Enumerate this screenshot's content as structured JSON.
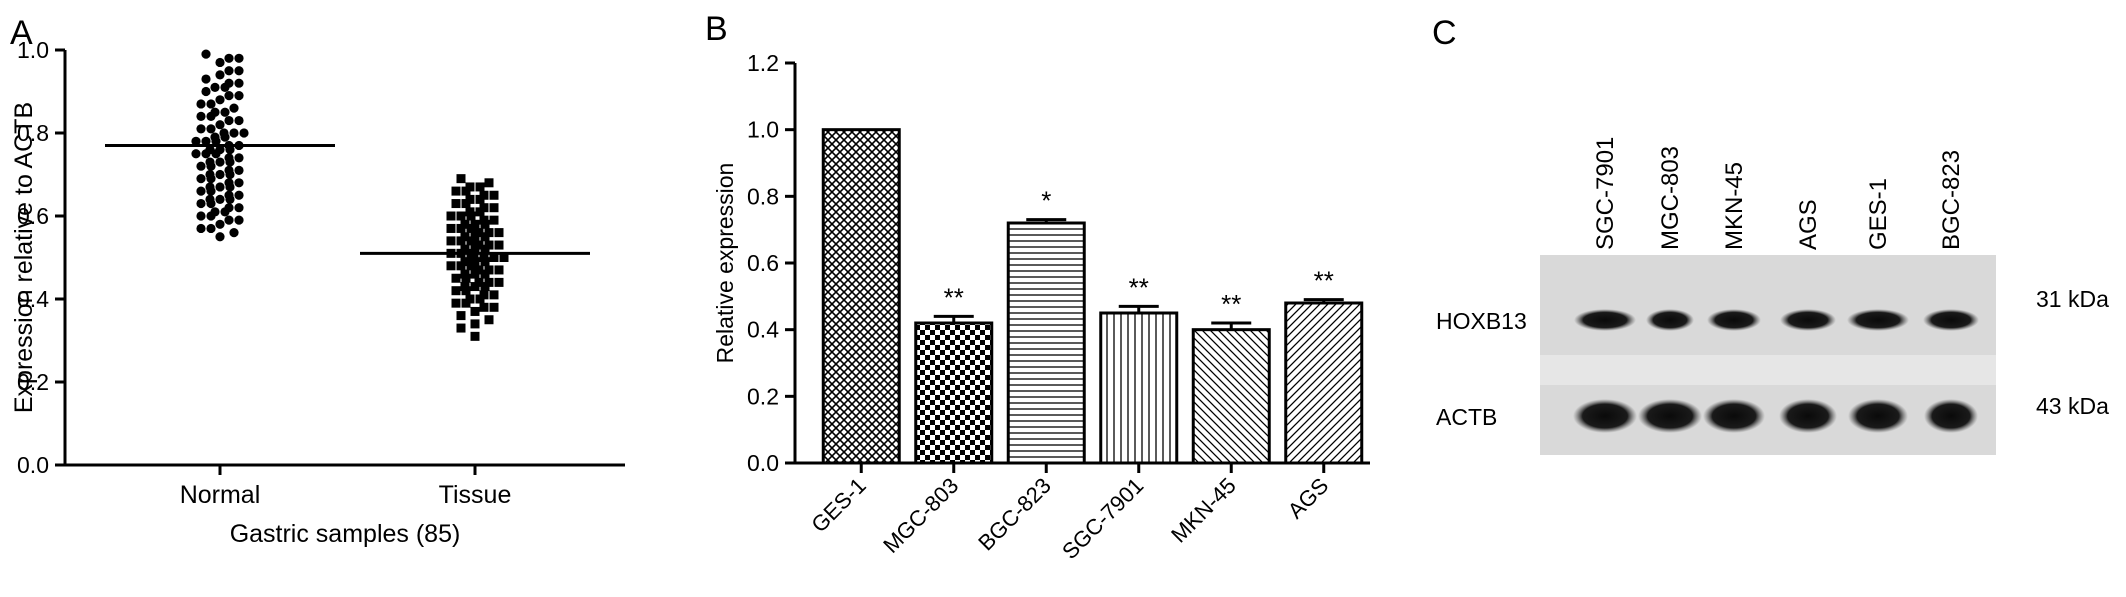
{
  "panels": {
    "A": {
      "label": "A"
    },
    "B": {
      "label": "B"
    },
    "C": {
      "label": "C"
    }
  },
  "chart_data": [
    {
      "panel": "A",
      "type": "scatter",
      "title": "",
      "xlabel": "Gastric samples (85)",
      "ylabel": "Expression relative to ACTB",
      "categories": [
        "Normal",
        "Tissue"
      ],
      "ylim": [
        0,
        1.0
      ],
      "yticks": [
        "0.0",
        "0.2",
        "0.4",
        "0.6",
        "0.8",
        "1.0"
      ],
      "grid": false,
      "series": [
        {
          "category": "Normal",
          "marker": "circle",
          "mean": 0.77,
          "values": [
            0.99,
            0.98,
            0.98,
            0.97,
            0.95,
            0.95,
            0.94,
            0.93,
            0.92,
            0.92,
            0.91,
            0.91,
            0.9,
            0.89,
            0.89,
            0.88,
            0.87,
            0.87,
            0.86,
            0.85,
            0.85,
            0.84,
            0.83,
            0.83,
            0.82,
            0.81,
            0.81,
            0.8,
            0.8,
            0.79,
            0.79,
            0.78,
            0.78,
            0.77,
            0.77,
            0.76,
            0.76,
            0.75,
            0.75,
            0.74,
            0.74,
            0.73,
            0.73,
            0.72,
            0.72,
            0.71,
            0.71,
            0.7,
            0.7,
            0.69,
            0.69,
            0.68,
            0.68,
            0.67,
            0.67,
            0.66,
            0.66,
            0.65,
            0.65,
            0.64,
            0.64,
            0.63,
            0.63,
            0.62,
            0.62,
            0.61,
            0.61,
            0.6,
            0.6,
            0.59,
            0.59,
            0.58,
            0.57,
            0.57,
            0.56,
            0.55,
            0.84,
            0.8,
            0.76,
            0.73,
            0.7,
            0.67,
            0.64,
            0.78,
            0.75
          ]
        },
        {
          "category": "Tissue",
          "marker": "square",
          "mean": 0.51,
          "values": [
            0.69,
            0.68,
            0.67,
            0.67,
            0.66,
            0.66,
            0.65,
            0.65,
            0.64,
            0.64,
            0.63,
            0.63,
            0.62,
            0.61,
            0.61,
            0.6,
            0.6,
            0.59,
            0.59,
            0.58,
            0.58,
            0.57,
            0.57,
            0.56,
            0.56,
            0.55,
            0.55,
            0.54,
            0.54,
            0.53,
            0.53,
            0.52,
            0.52,
            0.51,
            0.51,
            0.5,
            0.5,
            0.49,
            0.49,
            0.48,
            0.48,
            0.47,
            0.47,
            0.46,
            0.46,
            0.45,
            0.45,
            0.44,
            0.44,
            0.43,
            0.43,
            0.42,
            0.42,
            0.41,
            0.41,
            0.4,
            0.4,
            0.39,
            0.39,
            0.38,
            0.38,
            0.37,
            0.36,
            0.35,
            0.34,
            0.33,
            0.31,
            0.62,
            0.58,
            0.55,
            0.52,
            0.49,
            0.46,
            0.43,
            0.57,
            0.53,
            0.5,
            0.47,
            0.44,
            0.6,
            0.56,
            0.51,
            0.48,
            0.54,
            0.5
          ]
        }
      ]
    },
    {
      "panel": "B",
      "type": "bar",
      "title": "",
      "xlabel": "",
      "ylabel": "Relative expression",
      "categories": [
        "GES-1",
        "MGC-803",
        "BGC-823",
        "SGC-7901",
        "MKN-45",
        "AGS"
      ],
      "values": [
        1.0,
        0.42,
        0.72,
        0.45,
        0.4,
        0.48
      ],
      "errors": [
        0.0,
        0.02,
        0.01,
        0.02,
        0.02,
        0.01
      ],
      "significance": [
        "",
        "**",
        "*",
        "**",
        "**",
        "**"
      ],
      "patterns": [
        "crosshatch",
        "checker",
        "horizontal",
        "vertical",
        "diagonal-down",
        "diagonal-up"
      ],
      "ylim": [
        0,
        1.2
      ],
      "yticks": [
        "0.0",
        "0.2",
        "0.4",
        "0.6",
        "0.8",
        "1.0",
        "1.2"
      ],
      "grid": false
    }
  ],
  "western_blot": {
    "lanes": [
      "SGC-7901",
      "MGC-803",
      "MKN-45",
      "AGS",
      "GES-1",
      "BGC-823"
    ],
    "rows": [
      {
        "protein": "HOXB13",
        "size": "31 kDa"
      },
      {
        "protein": "ACTB",
        "size": "43 kDa"
      }
    ]
  }
}
